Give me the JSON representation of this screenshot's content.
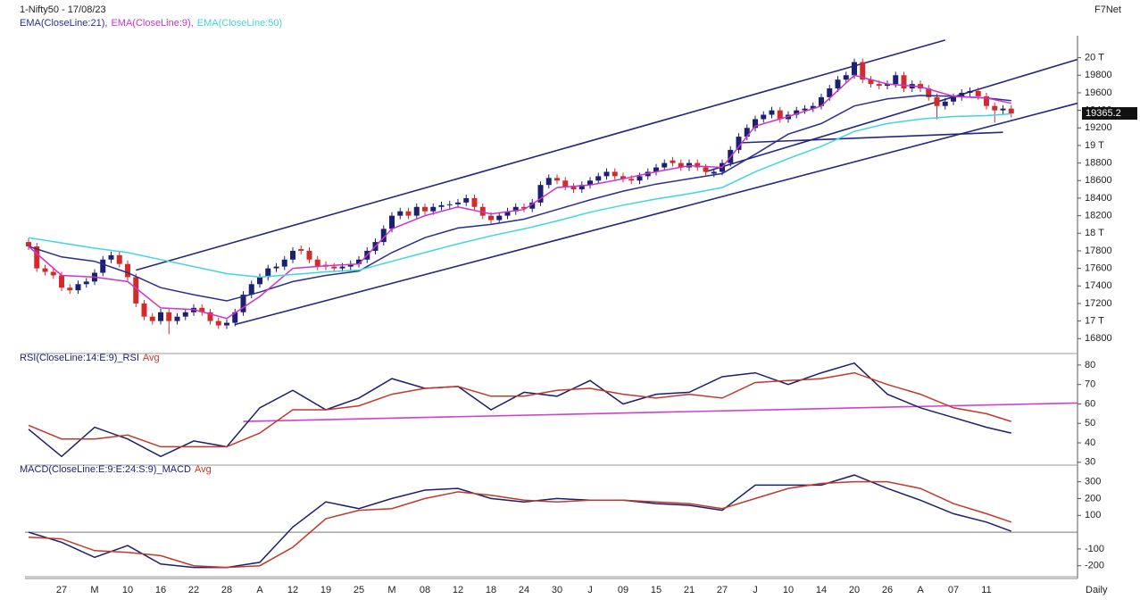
{
  "chart_data": [
    {
      "type": "candlestick",
      "title": "1-Nifty50 - 17/08/23",
      "source": "F7Net",
      "interval": "Daily",
      "legend_separator": ",",
      "up_color": "#1c2070",
      "down_color": "#d22b2b",
      "categories": [
        null,
        null,
        null,
        null,
        "27",
        null,
        null,
        null,
        "M",
        null,
        null,
        null,
        "10",
        null,
        null,
        null,
        "16",
        null,
        null,
        null,
        "22",
        null,
        null,
        null,
        "28",
        null,
        null,
        null,
        "A",
        null,
        null,
        null,
        "12",
        null,
        null,
        null,
        "19",
        null,
        null,
        null,
        "25",
        null,
        null,
        null,
        "M",
        null,
        null,
        null,
        "08",
        null,
        null,
        null,
        "12",
        null,
        null,
        null,
        "18",
        null,
        null,
        null,
        "24",
        null,
        null,
        null,
        "30",
        null,
        null,
        null,
        "J",
        null,
        null,
        null,
        "09",
        null,
        null,
        null,
        "15",
        null,
        null,
        null,
        "21",
        null,
        null,
        null,
        "27",
        null,
        null,
        null,
        "J",
        null,
        null,
        null,
        "10",
        null,
        null,
        null,
        "14",
        null,
        null,
        null,
        "20",
        null,
        null,
        null,
        "26",
        null,
        null,
        null,
        "A",
        null,
        null,
        null,
        "07",
        null,
        null,
        null,
        "11",
        null,
        null,
        null
      ],
      "open": [
        17900,
        17850,
        17600,
        17560,
        17520,
        17380,
        17350,
        17420,
        17450,
        17550,
        17700,
        17750,
        17650,
        17500,
        17200,
        17050,
        17000,
        17100,
        17000,
        17050,
        17100,
        17150,
        17100,
        17000,
        16950,
        16980,
        17100,
        17300,
        17420,
        17500,
        17600,
        17620,
        17700,
        17820,
        17800,
        17700,
        17640,
        17620,
        17600,
        17620,
        17650,
        17700,
        17800,
        17900,
        18050,
        18200,
        18250,
        18200,
        18300,
        18250,
        18300,
        18320,
        18330,
        18350,
        18400,
        18300,
        18200,
        18150,
        18200,
        18250,
        18300,
        18280,
        18350,
        18550,
        18630,
        18600,
        18530,
        18500,
        18550,
        18600,
        18650,
        18700,
        18650,
        18620,
        18600,
        18650,
        18700,
        18750,
        18830,
        18800,
        18750,
        18800,
        18750,
        18680,
        18700,
        18800,
        18950,
        19100,
        19200,
        19300,
        19350,
        19400,
        19300,
        19350,
        19400,
        19420,
        19450,
        19550,
        19650,
        19750,
        19800,
        19950,
        19750,
        19700,
        19680,
        19700,
        19800,
        19650,
        19700,
        19650,
        19550,
        19450,
        19500,
        19550,
        19600,
        19620,
        19560,
        19450,
        19400,
        19420
      ],
      "high": [
        17940,
        17890,
        17640,
        17600,
        17560,
        17420,
        17460,
        17490,
        17590,
        17740,
        17790,
        17790,
        17690,
        17540,
        17240,
        17090,
        17140,
        17140,
        17090,
        17140,
        17190,
        17190,
        17140,
        17040,
        17020,
        17140,
        17340,
        17460,
        17540,
        17640,
        17660,
        17740,
        17840,
        17860,
        17840,
        17740,
        17680,
        17660,
        17660,
        17690,
        17740,
        17840,
        17940,
        18090,
        18240,
        18290,
        18290,
        18340,
        18340,
        18340,
        18360,
        18370,
        18390,
        18440,
        18440,
        18340,
        18240,
        18240,
        18290,
        18340,
        18340,
        18390,
        18590,
        18670,
        18670,
        18640,
        18570,
        18590,
        18640,
        18690,
        18740,
        18740,
        18690,
        18660,
        18690,
        18740,
        18790,
        18840,
        18870,
        18840,
        18840,
        18840,
        18790,
        18740,
        18840,
        18990,
        19140,
        19240,
        19340,
        19390,
        19440,
        19440,
        19390,
        19440,
        19460,
        19490,
        19590,
        19690,
        19790,
        19840,
        19990,
        19990,
        19790,
        19740,
        19740,
        19840,
        19840,
        19740,
        19740,
        19690,
        19590,
        19540,
        19590,
        19640,
        19660,
        19660,
        19600,
        19490,
        19460,
        19460
      ],
      "low": [
        17810,
        17560,
        17520,
        17480,
        17340,
        17310,
        17310,
        17380,
        17410,
        17510,
        17660,
        17610,
        17460,
        17160,
        17010,
        16960,
        16960,
        16850,
        16960,
        17010,
        17060,
        17060,
        16960,
        16910,
        16910,
        16940,
        17060,
        17260,
        17380,
        17460,
        17560,
        17580,
        17660,
        17760,
        17660,
        17580,
        17580,
        17560,
        17560,
        17580,
        17610,
        17660,
        17760,
        17860,
        18010,
        18160,
        18160,
        18160,
        18210,
        18210,
        18260,
        18280,
        18290,
        18310,
        18260,
        18160,
        18110,
        18110,
        18160,
        18210,
        18240,
        18240,
        18310,
        18510,
        18560,
        18490,
        18460,
        18460,
        18510,
        18560,
        18610,
        18610,
        18580,
        18560,
        18560,
        18610,
        18660,
        18710,
        18760,
        18710,
        18710,
        18710,
        18660,
        18640,
        18660,
        18760,
        18910,
        19060,
        19160,
        19260,
        19310,
        19260,
        19260,
        19310,
        19360,
        19380,
        19410,
        19510,
        19610,
        19710,
        19760,
        19710,
        19660,
        19640,
        19640,
        19660,
        19610,
        19610,
        19610,
        19510,
        19300,
        19410,
        19460,
        19510,
        19560,
        19520,
        19410,
        19260,
        19360,
        19320
      ],
      "close": [
        17850,
        17600,
        17560,
        17520,
        17380,
        17350,
        17420,
        17450,
        17550,
        17700,
        17750,
        17650,
        17500,
        17200,
        17050,
        17000,
        17100,
        17000,
        17050,
        17100,
        17150,
        17100,
        17000,
        16950,
        16980,
        17100,
        17300,
        17420,
        17500,
        17600,
        17620,
        17700,
        17800,
        17800,
        17700,
        17620,
        17620,
        17600,
        17620,
        17650,
        17700,
        17800,
        17900,
        18050,
        18200,
        18250,
        18200,
        18300,
        18250,
        18300,
        18320,
        18330,
        18350,
        18400,
        18300,
        18200,
        18150,
        18200,
        18250,
        18300,
        18280,
        18350,
        18550,
        18630,
        18600,
        18530,
        18500,
        18550,
        18600,
        18650,
        18700,
        18650,
        18620,
        18600,
        18650,
        18700,
        18750,
        18800,
        18800,
        18750,
        18800,
        18750,
        18700,
        18700,
        18800,
        18950,
        19100,
        19200,
        19300,
        19350,
        19400,
        19300,
        19350,
        19400,
        19420,
        19450,
        19550,
        19650,
        19750,
        19800,
        19950,
        19750,
        19700,
        19680,
        19700,
        19800,
        19650,
        19700,
        19650,
        19550,
        19450,
        19500,
        19550,
        19600,
        19620,
        19560,
        19450,
        19400,
        19420,
        19365.2
      ],
      "x": [
        0,
        4,
        8,
        12,
        16,
        20,
        24,
        28,
        32,
        36,
        40,
        44,
        48,
        52,
        56,
        60,
        64,
        68,
        72,
        76,
        80,
        84,
        88,
        92,
        96,
        100,
        104,
        108,
        112,
        116,
        119
      ],
      "series": [
        {
          "name": "EMA(CloseLine:21)",
          "color": "#2a2f8f",
          "values": [
            17850,
            17730,
            17680,
            17550,
            17380,
            17300,
            17230,
            17330,
            17450,
            17520,
            17570,
            17780,
            17950,
            18060,
            18100,
            18160,
            18270,
            18380,
            18480,
            18560,
            18620,
            18680,
            18900,
            19130,
            19250,
            19450,
            19530,
            19570,
            19560,
            19540,
            19510
          ]
        },
        {
          "name": "EMA(CloseLine:9)",
          "color": "#cc33cc",
          "values": [
            17850,
            17520,
            17500,
            17450,
            17150,
            17130,
            17030,
            17280,
            17600,
            17630,
            17650,
            18050,
            18200,
            18300,
            18220,
            18270,
            18520,
            18550,
            18620,
            18700,
            18770,
            18750,
            19220,
            19330,
            19450,
            19800,
            19700,
            19670,
            19560,
            19540,
            19480
          ]
        },
        {
          "name": "EMA(CloseLine:50)",
          "color": "#3fd6df",
          "values": [
            17950,
            17890,
            17830,
            17780,
            17700,
            17620,
            17540,
            17500,
            17530,
            17560,
            17580,
            17680,
            17780,
            17880,
            17970,
            18050,
            18140,
            18240,
            18320,
            18390,
            18450,
            18520,
            18700,
            18850,
            18990,
            19160,
            19250,
            19300,
            19330,
            19340,
            19360
          ]
        }
      ],
      "trendline_color": "#23277e",
      "trendlines": [
        {
          "x": [
            13,
            111
          ],
          "values": [
            17580,
            20200
          ]
        },
        {
          "x": [
            25,
            127
          ],
          "values": [
            16960,
            19480
          ]
        },
        {
          "x": [
            82,
            127
          ],
          "values": [
            18700,
            19980
          ]
        },
        {
          "x": [
            86,
            118
          ],
          "values": [
            19030,
            19150
          ]
        }
      ],
      "ylim": [
        16640,
        20230
      ],
      "yticks": [
        16800,
        {
          "value": 17000,
          "label": "17 T"
        },
        17200,
        17400,
        17600,
        17800,
        {
          "value": 18000,
          "label": "18 T"
        },
        18200,
        18400,
        18600,
        18800,
        {
          "value": 19000,
          "label": "19 T"
        },
        19200,
        19400,
        19600,
        19800,
        {
          "value": 20000,
          "label": "20 T"
        }
      ]
    },
    {
      "type": "line",
      "x": [
        0,
        4,
        8,
        12,
        16,
        20,
        24,
        28,
        32,
        36,
        40,
        44,
        48,
        52,
        56,
        60,
        64,
        68,
        72,
        76,
        80,
        84,
        88,
        92,
        96,
        100,
        104,
        108,
        112,
        116,
        119
      ],
      "series": [
        {
          "name": "RSI(CloseLine:14:E:9)_RSI",
          "color": "#1c1f6b",
          "values": [
            47,
            33,
            48,
            42,
            33,
            41,
            38,
            58,
            67,
            57,
            63,
            73,
            68,
            69,
            57,
            66,
            64,
            72,
            60,
            65,
            66,
            74,
            76,
            70,
            76,
            81,
            65,
            58,
            53,
            48,
            45
          ]
        },
        {
          "name": "Avg",
          "color": "#c0392b",
          "values": [
            49,
            42,
            42,
            44,
            38,
            38,
            38,
            45,
            57,
            57,
            59,
            65,
            68,
            69,
            64,
            64,
            67,
            68,
            65,
            63,
            65,
            63,
            71,
            72,
            73,
            76,
            70,
            65,
            58,
            55,
            51
          ]
        }
      ],
      "trendline_color": "#d040d0",
      "trendlines": [
        {
          "x": [
            26,
            127
          ],
          "values": [
            51,
            60.5
          ]
        }
      ],
      "ylim": [
        29,
        85
      ],
      "yticks": [
        30,
        40,
        50,
        60,
        70,
        80
      ]
    },
    {
      "type": "line",
      "x": [
        0,
        4,
        8,
        12,
        16,
        20,
        24,
        28,
        32,
        36,
        40,
        44,
        48,
        52,
        56,
        60,
        64,
        68,
        72,
        76,
        80,
        84,
        88,
        92,
        96,
        100,
        104,
        108,
        112,
        116,
        119
      ],
      "series": [
        {
          "name": "MACD(CloseLine:E:9:E:24:S:9)_MACD",
          "color": "#1c1f6b",
          "values": [
            0,
            -60,
            -150,
            -80,
            -190,
            -210,
            -210,
            -180,
            30,
            180,
            140,
            200,
            250,
            260,
            200,
            180,
            200,
            190,
            190,
            170,
            160,
            130,
            280,
            280,
            280,
            340,
            260,
            190,
            110,
            60,
            5
          ]
        },
        {
          "name": "Avg",
          "color": "#c0392b",
          "values": [
            -30,
            -40,
            -110,
            -120,
            -140,
            -200,
            -210,
            -200,
            -90,
            80,
            130,
            140,
            200,
            240,
            220,
            190,
            180,
            190,
            190,
            180,
            170,
            140,
            200,
            260,
            290,
            300,
            300,
            260,
            170,
            110,
            60
          ]
        }
      ],
      "zero_line": 0,
      "ylim": [
        -260,
        383
      ],
      "yticks": [
        -200,
        -100,
        100,
        200,
        300
      ]
    }
  ]
}
